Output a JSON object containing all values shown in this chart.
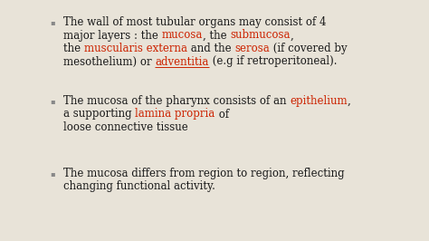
{
  "background_color": "#e8e3d8",
  "text_color_black": "#1a1a1a",
  "text_color_red": "#cc2200",
  "bullet_color": "#888888",
  "font_size": 8.5,
  "paragraphs": [
    {
      "lines": [
        [
          {
            "text": "The wall of most tubular organs may consist of 4",
            "color": "#1a1a1a",
            "underline": false
          }
        ],
        [
          {
            "text": "major layers : the ",
            "color": "#1a1a1a",
            "underline": false
          },
          {
            "text": "mucosa",
            "color": "#cc2200",
            "underline": false
          },
          {
            "text": ", the ",
            "color": "#1a1a1a",
            "underline": false
          },
          {
            "text": "submucosa",
            "color": "#cc2200",
            "underline": false
          },
          {
            "text": ",",
            "color": "#1a1a1a",
            "underline": false
          }
        ],
        [
          {
            "text": "the ",
            "color": "#1a1a1a",
            "underline": false
          },
          {
            "text": "muscularis externa",
            "color": "#cc2200",
            "underline": false
          },
          {
            "text": " and the ",
            "color": "#1a1a1a",
            "underline": false
          },
          {
            "text": "serosa",
            "color": "#cc2200",
            "underline": false
          },
          {
            "text": " (if covered by",
            "color": "#1a1a1a",
            "underline": false
          }
        ],
        [
          {
            "text": "mesothelium) or ",
            "color": "#1a1a1a",
            "underline": false
          },
          {
            "text": "adventitia",
            "color": "#cc2200",
            "underline": true
          },
          {
            "text": " (e.g if retroperitoneal).",
            "color": "#1a1a1a",
            "underline": false
          }
        ]
      ]
    },
    {
      "lines": [
        [
          {
            "text": "The mucosa of the pharynx consists of an ",
            "color": "#1a1a1a",
            "underline": false
          },
          {
            "text": "epithelium",
            "color": "#cc2200",
            "underline": false
          },
          {
            "text": ",",
            "color": "#1a1a1a",
            "underline": false
          }
        ],
        [
          {
            "text": "a supporting ",
            "color": "#1a1a1a",
            "underline": false
          },
          {
            "text": "lamina propria",
            "color": "#cc2200",
            "underline": false
          },
          {
            "text": " of",
            "color": "#1a1a1a",
            "underline": false
          }
        ],
        [
          {
            "text": "loose connective tissue",
            "color": "#1a1a1a",
            "underline": false
          }
        ]
      ]
    },
    {
      "lines": [
        [
          {
            "text": "The mucosa differs from region to region, reflecting",
            "color": "#1a1a1a",
            "underline": false
          }
        ],
        [
          {
            "text": "changing functional activity.",
            "color": "#1a1a1a",
            "underline": false
          }
        ]
      ]
    }
  ]
}
